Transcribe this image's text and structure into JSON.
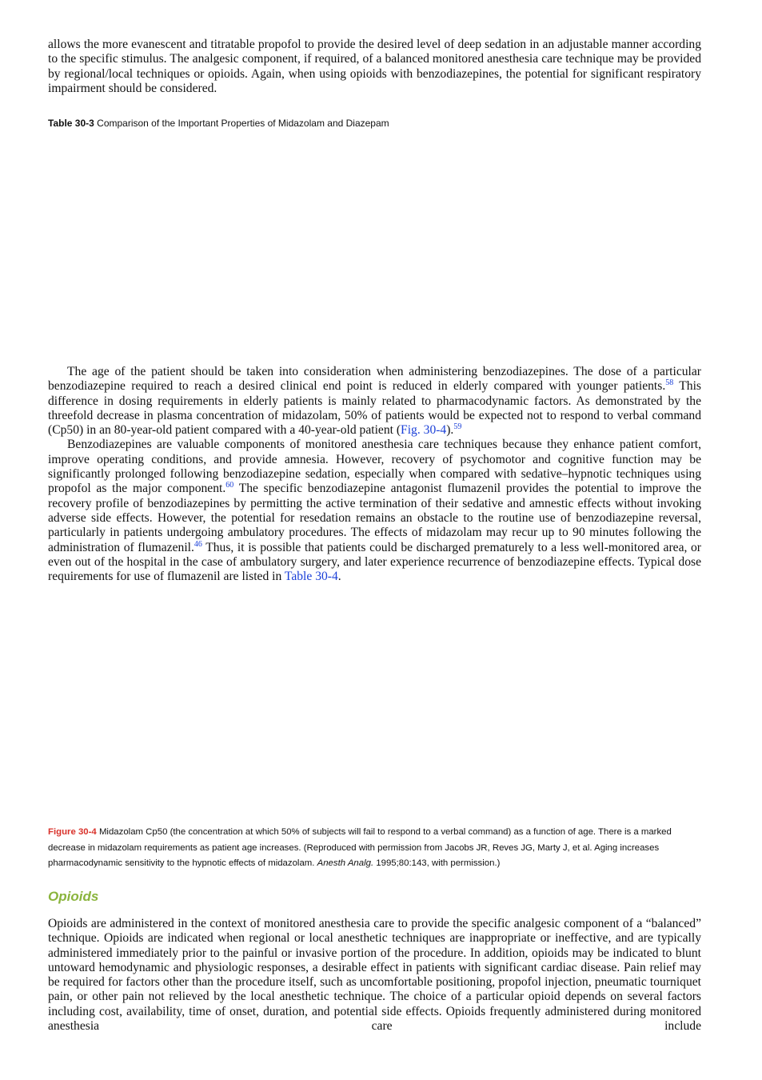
{
  "intro_paragraph": "allows the more evanescent and titratable propofol to provide the desired level of deep sedation in an adjustable manner according to the specific stimulus. The analgesic component, if required, of a balanced monitored anesthesia care technique may be provided by regional/local techniques or opioids. Again, when using opioids with benzodiazepines, the potential for significant respiratory impairment should be considered.",
  "table_caption": {
    "label": "Table 30-3",
    "text": " Comparison of the Important Properties of Midazolam and Diazepam"
  },
  "paragraphs": [
    [
      "The age of the patient should be taken into consideration when administering benzodiazepines. The dose of a particular benzodiazepine required to reach a desired clinical end point is reduced in elderly compared with younger patients.",
      "58",
      " This difference in dosing requirements in elderly patients is mainly related to pharmacodynamic factors. As demonstrated by the threefold decrease in plasma concentration of midazolam, 50% of patients would be expected not to respond to verbal command (Cp50) in an 80-year-old patient compared with a 40-year-old patient (",
      "Fig. 30-4",
      ").",
      "59"
    ],
    [
      "Benzodiazepines are valuable components of monitored anesthesia care techniques because they enhance patient comfort, improve operating conditions, and provide amnesia. However, recovery of psychomotor and cognitive function may be significantly prolonged following benzodiazepine sedation, especially when compared with sedative–hypnotic techniques using propofol as the major component.",
      "60",
      " The specific benzodiazepine antagonist flumazenil provides the potential to improve the recovery profile of benzodiazepines by permitting the active termination of their sedative and amnestic effects without invoking adverse side effects. However, the potential for resedation remains an obstacle to the routine use of benzodiazepine reversal, particularly in patients undergoing ambulatory procedures. The effects of midazolam may recur up to 90 minutes following the administration of flumazenil.",
      "46",
      " Thus, it is possible that patients could be discharged prematurely to a less well-monitored area, or even out of the hospital in the case of ambulatory surgery, and later experience recurrence of benzodiazepine effects. Typical dose requirements for use of flumazenil are listed in ",
      "Table 30-4",
      "."
    ]
  ],
  "figure_caption": {
    "label": "Figure 30-4",
    "text": [
      " Midazolam Cp50 (the concentration at which 50% of subjects will fail to respond to a verbal command) as a function of age. There is a marked decrease in midazolam requirements as patient age increases. (Reproduced with permission from Jacobs JR, Reves JG, Marty J, et al. Aging increases pharmacodynamic sensitivity to the hypnotic effects of midazolam. ",
      "Anesth Analg.",
      " 1995;80:143, with permission.)"
    ]
  },
  "section": {
    "heading": "Opioids",
    "paragraph": "Opioids are administered in the context of monitored anesthesia care to provide the specific analgesic component of a “balanced” technique. Opioids are indicated when regional or local anesthetic techniques are inappropriate or ineffective, and are typically administered immediately prior to the painful or invasive portion of the procedure. In addition, opioids may be indicated to blunt untoward hemodynamic and physiologic responses, a desirable effect in patients with significant cardiac disease. Pain relief may be required for factors other than the procedure itself, such as uncomfortable positioning, propofol injection, pneumatic tourniquet pain, or other pain not relieved by the local anesthetic technique. The choice of a particular opioid depends on several factors including cost, availability, time of onset, duration, and potential side effects. Opioids frequently administered during monitored anesthesia care include"
  }
}
